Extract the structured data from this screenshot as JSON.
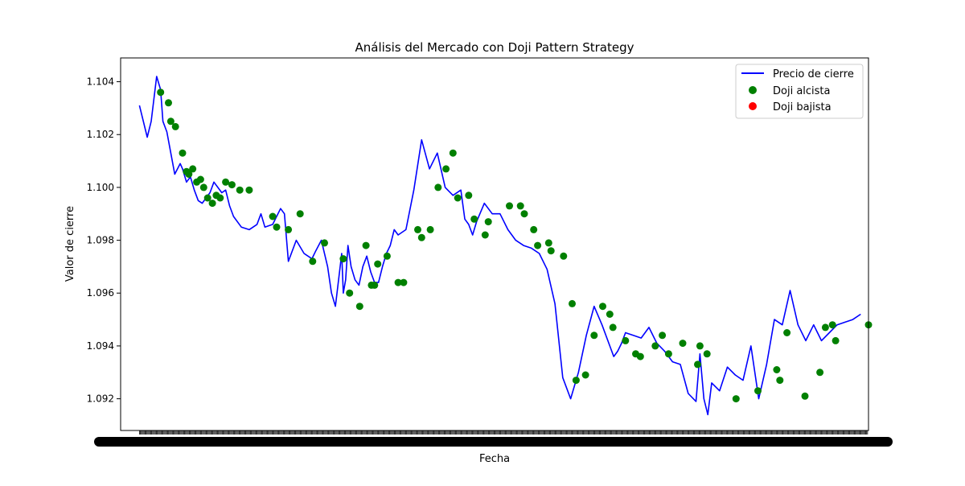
{
  "chart_data": {
    "type": "line",
    "title": "Análisis del Mercado con Doji Pattern Strategy",
    "xlabel": "Fecha",
    "ylabel": "Valor de cierre",
    "ylim": [
      1.0908,
      1.1049
    ],
    "xlim": [
      -24,
      930
    ],
    "yticks": [
      1.092,
      1.094,
      1.096,
      1.098,
      1.1,
      1.102,
      1.104
    ],
    "ytick_labels": [
      "1.092",
      "1.094",
      "1.096",
      "1.098",
      "1.100",
      "1.102",
      "1.104"
    ],
    "grid": false,
    "legend_position": "top-right",
    "series": [
      {
        "name": "Precio de cierre",
        "kind": "line",
        "color": "#0000ff",
        "x": [
          0,
          10,
          15,
          22,
          27,
          30,
          35,
          40,
          45,
          52,
          55,
          60,
          65,
          70,
          75,
          80,
          90,
          95,
          100,
          105,
          110,
          115,
          120,
          130,
          140,
          150,
          155,
          160,
          170,
          180,
          185,
          190,
          200,
          210,
          220,
          225,
          232,
          240,
          245,
          250,
          256,
          258,
          260,
          263,
          266,
          270,
          275,
          280,
          285,
          290,
          295,
          300,
          305,
          310,
          315,
          320,
          325,
          330,
          340,
          350,
          360,
          370,
          380,
          390,
          400,
          410,
          415,
          420,
          425,
          430,
          440,
          450,
          460,
          470,
          480,
          490,
          500,
          510,
          520,
          530,
          540,
          550,
          560,
          570,
          580,
          590,
          600,
          605,
          610,
          615,
          620,
          630,
          640,
          650,
          660,
          670,
          680,
          690,
          700,
          710,
          715,
          720,
          725,
          730,
          740,
          750,
          760,
          770,
          780,
          790,
          800,
          810,
          820,
          830,
          840,
          850,
          860,
          870,
          880,
          890,
          900,
          910,
          920
        ],
        "y": [
          1.1031,
          1.1019,
          1.1025,
          1.1042,
          1.1037,
          1.1025,
          1.1021,
          1.1013,
          1.1005,
          1.1009,
          1.1007,
          1.1002,
          1.1004,
          1.0999,
          1.0995,
          1.0994,
          1.0998,
          1.1002,
          1.1,
          1.0998,
          1.0999,
          1.0993,
          1.0989,
          1.0985,
          1.0984,
          1.0986,
          1.099,
          1.0985,
          1.0986,
          1.0992,
          1.099,
          1.0972,
          1.098,
          1.0975,
          1.0973,
          1.0976,
          1.098,
          1.097,
          1.096,
          1.0955,
          1.097,
          1.0975,
          1.096,
          1.0965,
          1.0978,
          1.097,
          1.0965,
          1.0963,
          1.097,
          1.0974,
          1.0968,
          1.0964,
          1.0964,
          1.097,
          1.0975,
          1.0978,
          1.0984,
          1.0982,
          1.0984,
          1.0999,
          1.1018,
          1.1007,
          1.1013,
          1.1,
          1.0997,
          1.0999,
          1.0988,
          1.0986,
          1.0982,
          1.0987,
          1.0994,
          1.099,
          1.099,
          1.0984,
          1.098,
          1.0978,
          1.0977,
          1.0975,
          1.0969,
          1.0956,
          1.0928,
          1.092,
          1.093,
          1.0944,
          1.0955,
          1.0948,
          1.094,
          1.0936,
          1.0938,
          1.0941,
          1.0945,
          1.0944,
          1.0943,
          1.0947,
          1.0941,
          1.0938,
          1.0934,
          1.0933,
          1.0922,
          1.0919,
          1.0937,
          1.092,
          1.0914,
          1.0926,
          1.0923,
          1.0932,
          1.0929,
          1.0927,
          1.094,
          1.092,
          1.0933,
          1.095,
          1.0948,
          1.0961,
          1.0948,
          1.0942,
          1.0948,
          1.0942,
          1.0945,
          1.0948,
          1.0949,
          1.095,
          1.0952
        ]
      },
      {
        "name": "Doji alcista",
        "kind": "scatter",
        "color": "#008000",
        "x": [
          27,
          37,
          40,
          46,
          55,
          60,
          63,
          68,
          73,
          78,
          82,
          87,
          93,
          98,
          103,
          110,
          118,
          128,
          140,
          170,
          175,
          190,
          205,
          221,
          236,
          260,
          268,
          281,
          289,
          296,
          300,
          304,
          316,
          330,
          337,
          355,
          360,
          371,
          381,
          391,
          400,
          406,
          420,
          427,
          441,
          445,
          472,
          486,
          491,
          503,
          508,
          522,
          525,
          541,
          552,
          557,
          569,
          580,
          591,
          600,
          604,
          620,
          633,
          639,
          658,
          667,
          675,
          693,
          712,
          715,
          724,
          761,
          789,
          813,
          817,
          826,
          849,
          868,
          875,
          884,
          888,
          930
        ],
        "y": [
          1.1036,
          1.1032,
          1.1025,
          1.1023,
          1.1013,
          1.1006,
          1.1005,
          1.1007,
          1.1002,
          1.1003,
          1.1,
          1.0996,
          1.0994,
          1.0997,
          1.0996,
          1.1002,
          1.1001,
          1.0999,
          1.0999,
          1.0989,
          1.0985,
          1.0984,
          1.099,
          1.0972,
          1.0979,
          1.0973,
          1.096,
          1.0955,
          1.0978,
          1.0963,
          1.0963,
          1.0971,
          1.0974,
          1.0964,
          1.0964,
          1.0984,
          1.0981,
          1.0984,
          1.1,
          1.1007,
          1.1013,
          1.0996,
          1.0997,
          1.0988,
          1.0982,
          1.0987,
          1.0993,
          1.0993,
          1.099,
          1.0984,
          1.0978,
          1.0979,
          1.0976,
          1.0974,
          1.0956,
          1.0927,
          1.0929,
          1.0944,
          1.0955,
          1.0952,
          1.0947,
          1.0942,
          1.0937,
          1.0936,
          1.094,
          1.0944,
          1.0937,
          1.0941,
          1.0933,
          1.094,
          1.0937,
          1.092,
          1.0923,
          1.0931,
          1.0927,
          1.0945,
          1.0921,
          1.093,
          1.0947,
          1.0948,
          1.0942,
          1.0948
        ]
      },
      {
        "name": "Doji bajista",
        "kind": "scatter",
        "color": "#ff0000",
        "x": [],
        "y": []
      }
    ]
  }
}
